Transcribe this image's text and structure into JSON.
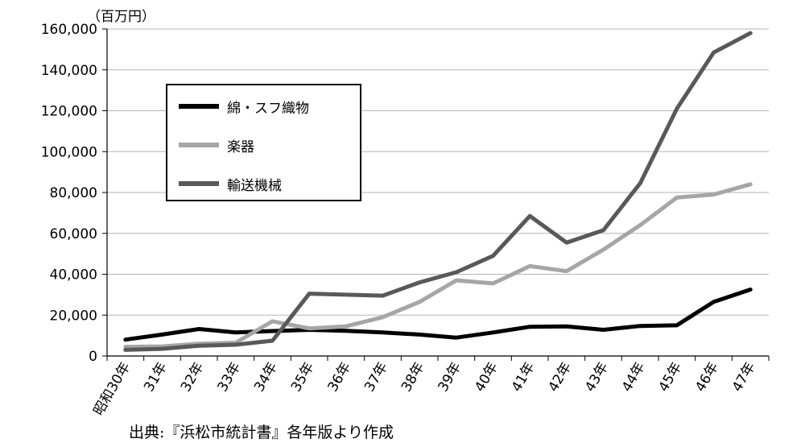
{
  "chart_data": {
    "type": "line",
    "unit_label": "（百万円）",
    "categories": [
      "昭和30年",
      "31年",
      "32年",
      "33年",
      "34年",
      "35年",
      "36年",
      "37年",
      "38年",
      "39年",
      "40年",
      "41年",
      "42年",
      "43年",
      "44年",
      "45年",
      "46年",
      "47年"
    ],
    "y_ticks": [
      "0",
      "20,000",
      "40,000",
      "60,000",
      "80,000",
      "100,000",
      "120,000",
      "140,000",
      "160,000"
    ],
    "ylim": [
      0,
      160000
    ],
    "grid": true,
    "legend_position": "upper-left",
    "series": [
      {
        "name": "綿・スフ織物",
        "color": "#000000",
        "values": [
          8000,
          10500,
          13200,
          11500,
          12200,
          12800,
          12300,
          11500,
          10500,
          9000,
          11500,
          14300,
          14500,
          12800,
          14700,
          15000,
          26500,
          32500
        ]
      },
      {
        "name": "楽器",
        "color": "#a6a6a6",
        "values": [
          4500,
          4700,
          6000,
          6500,
          17000,
          13500,
          14500,
          19000,
          26500,
          37000,
          35500,
          44000,
          41500,
          52000,
          64000,
          77500,
          79000,
          84000
        ]
      },
      {
        "name": "輸送機械",
        "color": "#595959",
        "values": [
          3000,
          3500,
          5000,
          5500,
          7500,
          30500,
          30000,
          29500,
          36000,
          41000,
          49000,
          68500,
          55500,
          61500,
          84500,
          121000,
          148500,
          158000
        ]
      }
    ]
  },
  "source_note": "出典:『浜松市統計書』各年版より作成"
}
